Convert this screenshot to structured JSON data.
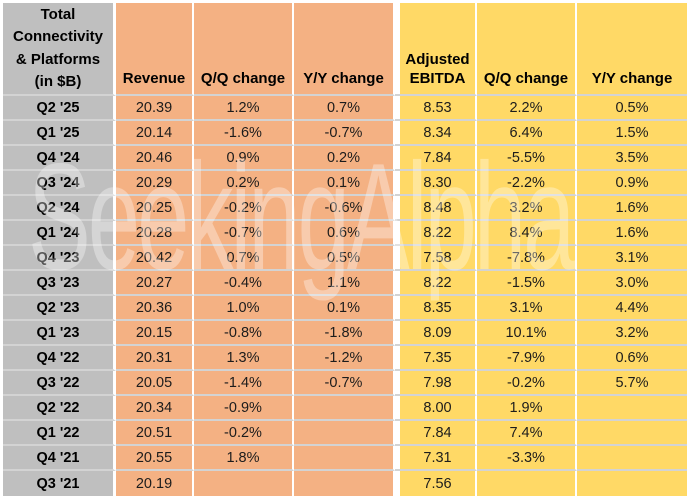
{
  "colors": {
    "gray": "#bfbfbf",
    "orange": "#f4b183",
    "yellow": "#ffd966",
    "gridline": "#d3d3d3"
  },
  "watermark": "SeekingAlpha",
  "header": {
    "corner": "Total\nConnectivity\n& Platforms\n(in $B)",
    "revenue": "Revenue",
    "revenue_qq": "Q/Q change",
    "revenue_yy": "Y/Y change",
    "ebitda": "Adjusted\nEBITDA",
    "ebitda_qq": "Q/Q change",
    "ebitda_yy": "Y/Y change"
  },
  "chart_data": {
    "type": "table",
    "title": "Total Connectivity & Platforms (in $B)",
    "categories": [
      "Q2 '25",
      "Q1 '25",
      "Q4 '24",
      "Q3 '24",
      "Q2 '24",
      "Q1 '24",
      "Q4 '23",
      "Q3 '23",
      "Q2 '23",
      "Q1 '23",
      "Q4 '22",
      "Q3 '22",
      "Q2 '22",
      "Q1 '22",
      "Q4 '21",
      "Q3 '21"
    ],
    "series": [
      {
        "name": "Revenue",
        "values": [
          "20.39",
          "20.14",
          "20.46",
          "20.29",
          "20.25",
          "20.28",
          "20.42",
          "20.27",
          "20.36",
          "20.15",
          "20.31",
          "20.05",
          "20.34",
          "20.51",
          "20.55",
          "20.19"
        ]
      },
      {
        "name": "Revenue Q/Q change",
        "values": [
          "1.2%",
          "-1.6%",
          "0.9%",
          "0.2%",
          "-0.2%",
          "-0.7%",
          "0.7%",
          "-0.4%",
          "1.0%",
          "-0.8%",
          "1.3%",
          "-1.4%",
          "-0.9%",
          "-0.2%",
          "1.8%",
          ""
        ]
      },
      {
        "name": "Revenue Y/Y change",
        "values": [
          "0.7%",
          "-0.7%",
          "0.2%",
          "0.1%",
          "-0.6%",
          "0.6%",
          "0.5%",
          "1.1%",
          "0.1%",
          "-1.8%",
          "-1.2%",
          "-0.7%",
          "",
          "",
          "",
          ""
        ]
      },
      {
        "name": "Adjusted EBITDA",
        "values": [
          "8.53",
          "8.34",
          "7.84",
          "8.30",
          "8.48",
          "8.22",
          "7.58",
          "8.22",
          "8.35",
          "8.09",
          "7.35",
          "7.98",
          "8.00",
          "7.84",
          "7.31",
          "7.56"
        ]
      },
      {
        "name": "Adjusted EBITDA Q/Q change",
        "values": [
          "2.2%",
          "6.4%",
          "-5.5%",
          "-2.2%",
          "3.2%",
          "8.4%",
          "-7.8%",
          "-1.5%",
          "3.1%",
          "10.1%",
          "-7.9%",
          "-0.2%",
          "1.9%",
          "7.4%",
          "-3.3%",
          ""
        ]
      },
      {
        "name": "Adjusted EBITDA Y/Y change",
        "values": [
          "0.5%",
          "1.5%",
          "3.5%",
          "0.9%",
          "1.6%",
          "1.6%",
          "3.1%",
          "3.0%",
          "4.4%",
          "3.2%",
          "0.6%",
          "5.7%",
          "",
          "",
          "",
          ""
        ]
      }
    ]
  }
}
